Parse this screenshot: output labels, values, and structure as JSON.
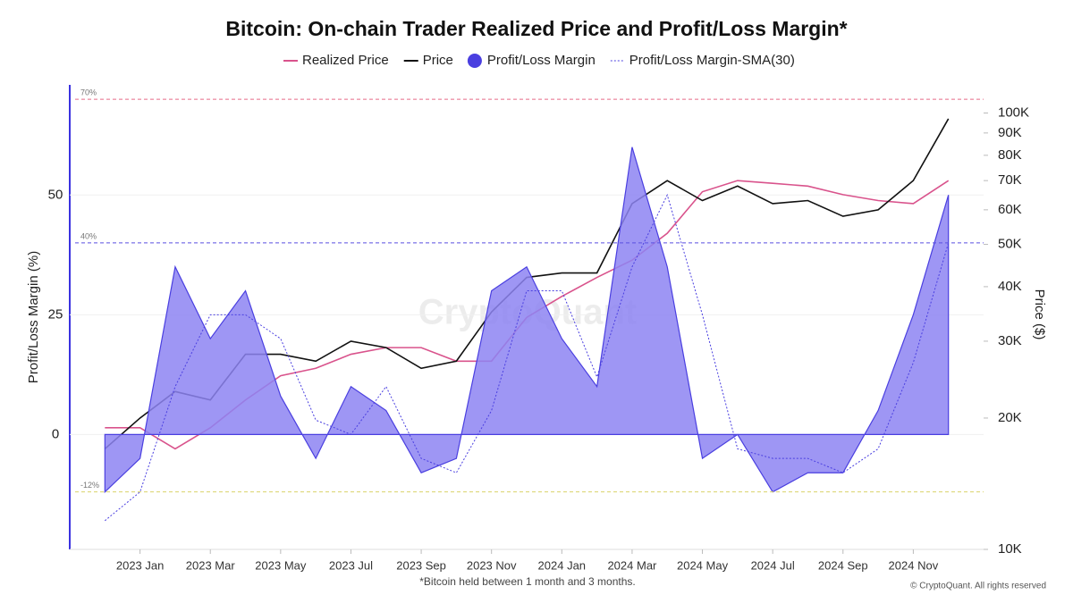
{
  "chart_data": {
    "type": "line",
    "title": "Bitcoin: On-chain Trader Realized Price and Profit/Loss Margin*",
    "ylabel": "Profit/Loss Margin (%)",
    "y2label": "Price ($)",
    "watermark": "CryptoQuant",
    "footnote": "*Bitcoin held between 1 month and 3 months.",
    "copyright": "© CryptoQuant. All rights reserved",
    "x": [
      "2022-12",
      "2023-01",
      "2023-02",
      "2023-03",
      "2023-04",
      "2023-05",
      "2023-06",
      "2023-07",
      "2023-08",
      "2023-09",
      "2023-10",
      "2023-11",
      "2023-12",
      "2024-01",
      "2024-02",
      "2024-03",
      "2024-04",
      "2024-05",
      "2024-06",
      "2024-07",
      "2024-08",
      "2024-09",
      "2024-10",
      "2024-11",
      "2024-12"
    ],
    "xlim": [
      "2022-11",
      "2025-01"
    ],
    "xticks": [
      {
        "value": "2023-01",
        "label": "2023 Jan"
      },
      {
        "value": "2023-03",
        "label": "2023 Mar"
      },
      {
        "value": "2023-05",
        "label": "2023 May"
      },
      {
        "value": "2023-07",
        "label": "2023 Jul"
      },
      {
        "value": "2023-09",
        "label": "2023 Sep"
      },
      {
        "value": "2023-11",
        "label": "2023 Nov"
      },
      {
        "value": "2024-01",
        "label": "2024 Jan"
      },
      {
        "value": "2024-03",
        "label": "2024 Mar"
      },
      {
        "value": "2024-05",
        "label": "2024 May"
      },
      {
        "value": "2024-07",
        "label": "2024 Jul"
      },
      {
        "value": "2024-09",
        "label": "2024 Sep"
      },
      {
        "value": "2024-11",
        "label": "2024 Nov"
      }
    ],
    "ylim": [
      -24,
      73
    ],
    "yticks": [
      0,
      25,
      50
    ],
    "y2lim": [
      10000,
      116000
    ],
    "y2log": true,
    "y2ticks": [
      {
        "value": 10000,
        "label": "10K"
      },
      {
        "value": 20000,
        "label": "20K"
      },
      {
        "value": 30000,
        "label": "30K"
      },
      {
        "value": 40000,
        "label": "40K"
      },
      {
        "value": 50000,
        "label": "50K"
      },
      {
        "value": 60000,
        "label": "60K"
      },
      {
        "value": 70000,
        "label": "70K"
      },
      {
        "value": 80000,
        "label": "80K"
      },
      {
        "value": 90000,
        "label": "90K"
      },
      {
        "value": 100000,
        "label": "100K"
      }
    ],
    "grid": true,
    "reference_lines": [
      {
        "value": 70,
        "label": "70%",
        "color": "#e86a86"
      },
      {
        "value": 40,
        "label": "40%",
        "color": "#5a4fe0"
      },
      {
        "value": -12,
        "label": "-12%",
        "color": "#d9d36a"
      }
    ],
    "series": [
      {
        "name": "Realized Price",
        "type": "line",
        "axis": "y2",
        "color": "#d9538c",
        "values": [
          19000,
          19000,
          17000,
          19000,
          22000,
          25000,
          26000,
          28000,
          29000,
          29000,
          27000,
          27000,
          34000,
          38000,
          42000,
          46000,
          53000,
          66000,
          70000,
          69000,
          68000,
          65000,
          63000,
          62000,
          70000
        ]
      },
      {
        "name": "Price",
        "type": "line",
        "axis": "y2",
        "color": "#111111",
        "values": [
          17000,
          20000,
          23000,
          22000,
          28000,
          28000,
          27000,
          30000,
          29000,
          26000,
          27000,
          35000,
          42000,
          43000,
          43000,
          62000,
          70000,
          63000,
          68000,
          62000,
          63000,
          58000,
          60000,
          70000,
          97000
        ]
      },
      {
        "name": "Profit/Loss Margin",
        "type": "area",
        "color": "#8d84f2",
        "stroke": "#4a3fe0",
        "values": [
          -12,
          -5,
          35,
          20,
          30,
          8,
          -5,
          10,
          5,
          -8,
          -5,
          30,
          35,
          20,
          10,
          60,
          35,
          -5,
          0,
          -12,
          -8,
          -8,
          5,
          25,
          50
        ]
      },
      {
        "name": "Profit/Loss Margin-SMA(30)",
        "type": "line",
        "dashed": true,
        "color": "#4a3fe0",
        "values": [
          -18,
          -12,
          10,
          25,
          25,
          20,
          3,
          0,
          10,
          -5,
          -8,
          5,
          30,
          30,
          12,
          35,
          50,
          25,
          -3,
          -5,
          -5,
          -8,
          -3,
          15,
          40
        ]
      }
    ]
  }
}
